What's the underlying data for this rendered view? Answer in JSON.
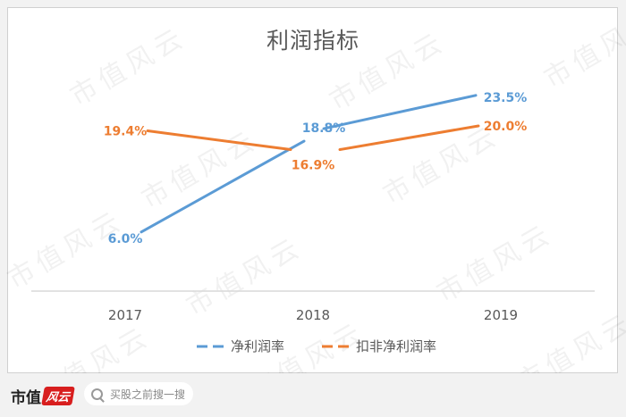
{
  "chart_data": {
    "type": "line",
    "title": "利润指标",
    "categories": [
      "2017",
      "2018",
      "2019"
    ],
    "series": [
      {
        "name": "净利润率",
        "values": [
          6.0,
          18.8,
          23.5
        ],
        "labels": [
          "6.0%",
          "18.8%",
          "23.5%"
        ],
        "color": "#5b9bd5"
      },
      {
        "name": "扣非净利润率",
        "values": [
          19.4,
          16.9,
          20.0
        ],
        "labels": [
          "19.4%",
          "16.9%",
          "20.0%"
        ],
        "color": "#ed7d31"
      }
    ],
    "ylim": [
      0,
      30
    ],
    "grid": false,
    "legend": "bottom"
  },
  "watermark": "市值风云",
  "footer": {
    "brand": "市值",
    "brand_seal": "风云",
    "search_placeholder": "买股之前搜一搜"
  }
}
